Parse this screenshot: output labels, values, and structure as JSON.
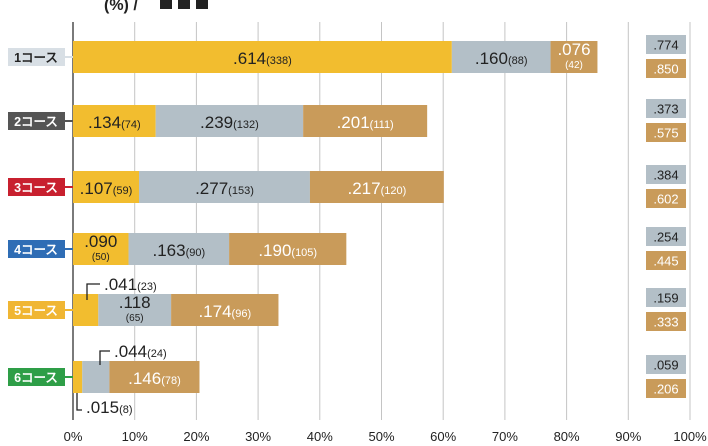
{
  "chart_data": {
    "type": "bar",
    "stacked": true,
    "orientation": "horizontal",
    "title_partial": "(%) /",
    "xlim": [
      0,
      100
    ],
    "x_ticks": [
      "0%",
      "10%",
      "20%",
      "30%",
      "40%",
      "50%",
      "60%",
      "70%",
      "80%",
      "90%",
      "100%"
    ],
    "grid": true,
    "categories": [
      "1コース",
      "2コース",
      "3コース",
      "4コース",
      "5コース",
      "6コース"
    ],
    "category_colors": [
      "#d8dfe5",
      "#555555",
      "#c8202f",
      "#2f6db5",
      "#f0b633",
      "#2e9e47"
    ],
    "category_text_colors": [
      "#222222",
      "#ffffff",
      "#ffffff",
      "#ffffff",
      "#ffffff",
      "#ffffff"
    ],
    "series_colors": [
      "#f2bd2f",
      "#b3bfc7",
      "#c99b5a"
    ],
    "series": [
      {
        "values": [
          61.4,
          13.4,
          10.7,
          9.0,
          4.1,
          1.5
        ],
        "labels": [
          ".614",
          ".134",
          ".107",
          ".090",
          ".041",
          ".015"
        ],
        "counts": [
          "(338)",
          "(74)",
          "(59)",
          "(50)",
          "(23)",
          "(8)"
        ]
      },
      {
        "values": [
          16.0,
          23.9,
          27.7,
          16.3,
          11.8,
          4.4
        ],
        "labels": [
          ".160",
          ".239",
          ".277",
          ".163",
          ".118",
          ".044"
        ],
        "counts": [
          "(88)",
          "(132)",
          "(153)",
          "(90)",
          "(65)",
          "(24)"
        ]
      },
      {
        "values": [
          7.6,
          20.1,
          21.7,
          19.0,
          17.4,
          14.6
        ],
        "labels": [
          ".076",
          ".201",
          ".217",
          ".190",
          ".174",
          ".146"
        ],
        "counts": [
          "(42)",
          "(111)",
          "(120)",
          "(105)",
          "(96)",
          "(78)"
        ]
      }
    ],
    "summary_top": [
      ".774",
      ".373",
      ".384",
      ".254",
      ".159",
      ".059"
    ],
    "summary_bottom": [
      ".850",
      ".575",
      ".602",
      ".445",
      ".333",
      ".206"
    ],
    "summary_colors": [
      "#b3bfc7",
      "#c99b5a"
    ]
  }
}
